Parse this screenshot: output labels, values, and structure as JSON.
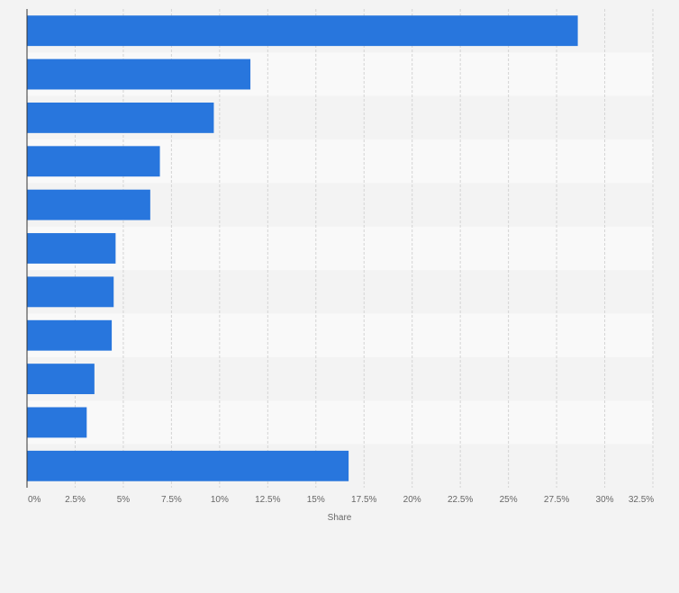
{
  "chart_data": {
    "type": "bar",
    "orientation": "horizontal",
    "categories": [
      "",
      "",
      "",
      "",
      "",
      "",
      "",
      "",
      "",
      "",
      ""
    ],
    "values": [
      28.6,
      11.6,
      9.7,
      6.9,
      6.4,
      4.6,
      4.5,
      4.4,
      3.5,
      3.1,
      16.7
    ],
    "xlabel": "Share",
    "ylabel": "",
    "xlim": [
      0,
      32.5
    ],
    "x_ticks": [
      0,
      2.5,
      5,
      7.5,
      10,
      12.5,
      15,
      17.5,
      20,
      22.5,
      25,
      27.5,
      30,
      32.5
    ],
    "x_tick_labels": [
      "0%",
      "2.5%",
      "5%",
      "7.5%",
      "10%",
      "12.5%",
      "15%",
      "17.5%",
      "20%",
      "22.5%",
      "25%",
      "27.5%",
      "30%",
      "32.5%"
    ],
    "grid": true,
    "legend": "none",
    "colors": {
      "bar": "#2876dd",
      "grid": "#d4d4d4",
      "band_light": "#f9f9f9",
      "band_dark": "#f3f3f3",
      "axis": "#333333"
    }
  }
}
